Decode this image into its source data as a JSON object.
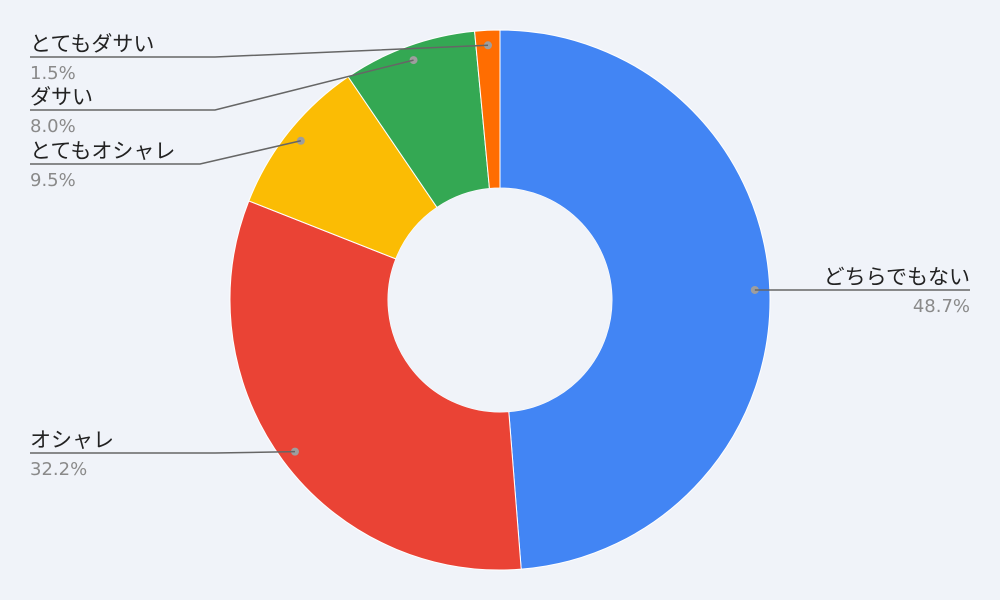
{
  "chart_data": {
    "type": "pie",
    "donut": true,
    "title": "",
    "legend": "none",
    "slices": [
      {
        "label": "どちらでもない",
        "percent_label": "48.7%",
        "value": 48.7,
        "color": "#4285f4"
      },
      {
        "label": "オシャレ",
        "percent_label": "32.2%",
        "value": 32.2,
        "color": "#ea4335"
      },
      {
        "label": "とてもオシャレ",
        "percent_label": "9.5%",
        "value": 9.5,
        "color": "#fbbc04"
      },
      {
        "label": "ダサい",
        "percent_label": "8.0%",
        "value": 8.0,
        "color": "#34a853"
      },
      {
        "label": "とてもダサい",
        "percent_label": "1.5%",
        "value": 1.5,
        "color": "#ff6d01"
      }
    ]
  }
}
